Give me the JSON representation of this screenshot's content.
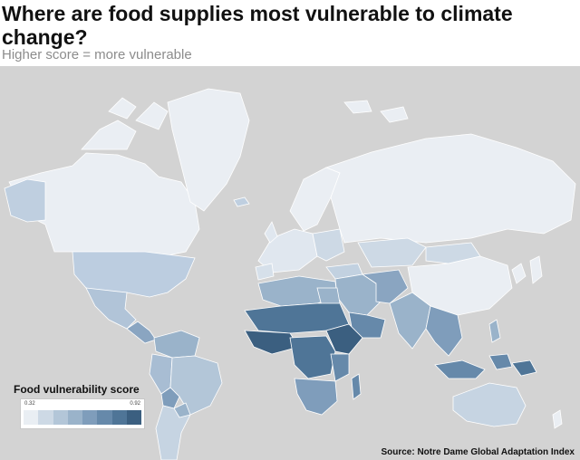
{
  "header": {
    "title": "Where are food supplies most vulnerable to climate change?",
    "subtitle": "Higher score = more vulnerable"
  },
  "legend": {
    "title": "Food vulnerability score",
    "min_label": "0.32",
    "max_label": "0.92",
    "steps": [
      "#e9eef3",
      "#cdd9e5",
      "#b3c6d8",
      "#9ab3ca",
      "#7f9dbb",
      "#6689aa",
      "#4f7597",
      "#3b5f80"
    ]
  },
  "source": "Source: Notre Dame Global Adaptation Index",
  "colors": {
    "ocean": "#d3d3d3",
    "low": "#e9eef3",
    "high": "#3b5f80"
  }
}
